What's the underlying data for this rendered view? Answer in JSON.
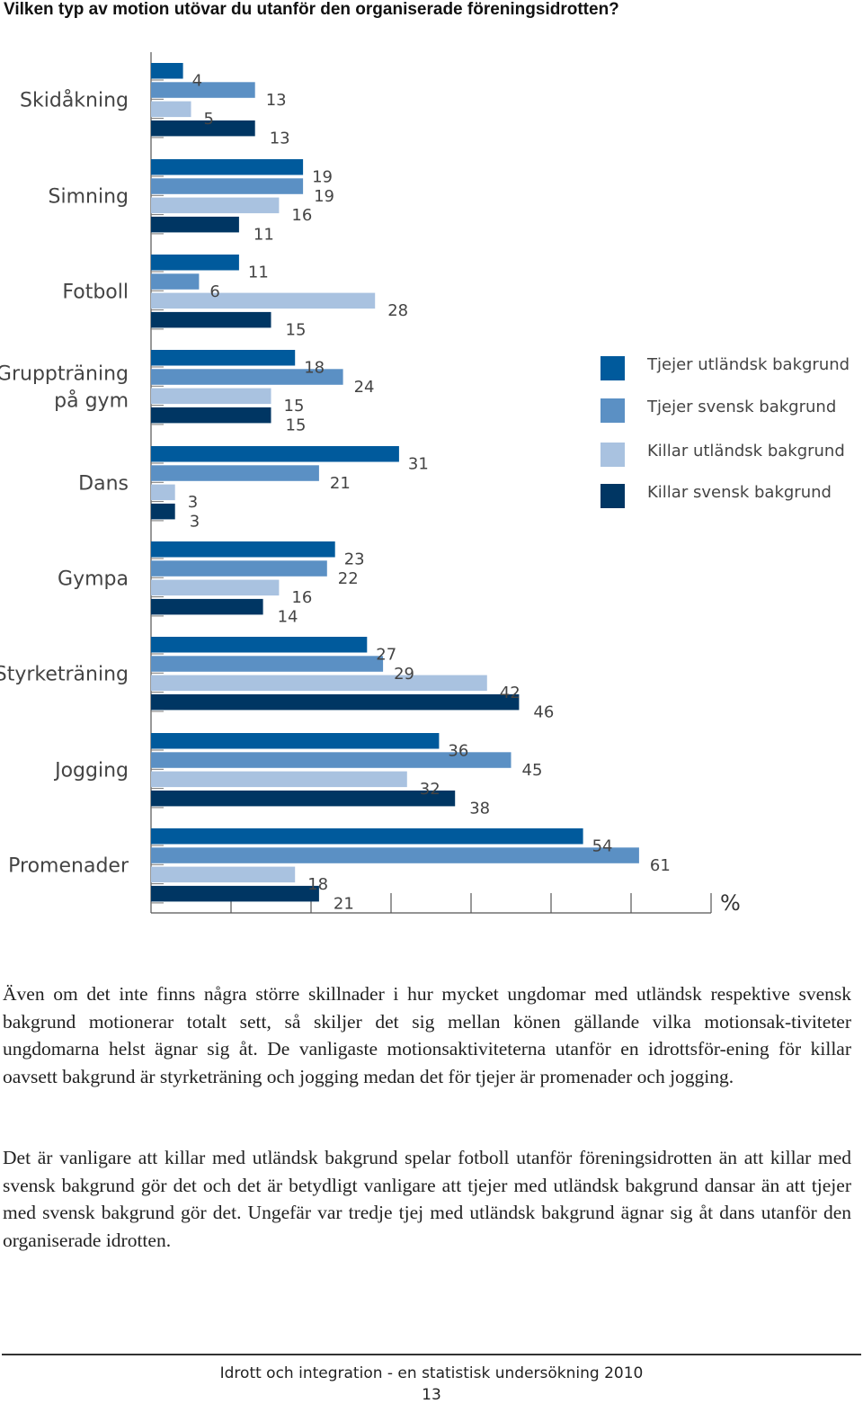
{
  "title": "Vilken typ av motion utövar du utanför den organiserade föreningsidrotten?",
  "chart_data": {
    "type": "bar",
    "orientation": "horizontal",
    "categories": [
      "Skidåkning",
      "Simning",
      "Fotboll",
      "Gruppträning på gym",
      "Dans",
      "Gympa",
      "Styrketräning",
      "Jogging",
      "Promenader"
    ],
    "category_labels": [
      [
        "Skidåkning"
      ],
      [
        "Simning"
      ],
      [
        "Fotboll"
      ],
      [
        "Gruppträning",
        "på gym"
      ],
      [
        "Dans"
      ],
      [
        "Gympa"
      ],
      [
        "Styrketräning"
      ],
      [
        "Jogging"
      ],
      [
        "Promenader"
      ]
    ],
    "series": [
      {
        "name": "Tjejer utländsk bakgrund",
        "color": "#005a9c",
        "values": [
          4,
          19,
          11,
          18,
          31,
          23,
          27,
          36,
          54
        ]
      },
      {
        "name": "Tjejer svensk bakgrund",
        "color": "#5b90c4",
        "values": [
          13,
          19,
          6,
          24,
          21,
          22,
          29,
          45,
          61
        ]
      },
      {
        "name": "Killar utländsk bakgrund",
        "color": "#a9c2e0",
        "values": [
          5,
          16,
          28,
          15,
          3,
          16,
          42,
          32,
          18
        ]
      },
      {
        "name": "Killar svensk bakgrund",
        "color": "#003663",
        "values": [
          13,
          11,
          15,
          15,
          3,
          14,
          46,
          38,
          21
        ]
      }
    ],
    "unit": "%",
    "xlim": [
      0,
      70
    ],
    "xticks": [
      0,
      10,
      20,
      30,
      40,
      50,
      60,
      70
    ],
    "grid": false,
    "legend_position": "right"
  },
  "paragraphs": [
    "Även om det inte finns några större skillnader i hur mycket ungdomar med utländsk respektive svensk bakgrund motionerar totalt sett, så skiljer det sig mellan könen gällande vilka motionsak-tiviteter ungdomarna helst ägnar sig åt. De vanligaste motionsaktiviteterna utanför en idrottsför-ening för killar oavsett bakgrund är styrketräning och jogging medan det för tjejer är promenader och jogging.",
    "Det är vanligare att killar med utländsk bakgrund spelar fotboll utanför föreningsidrotten än att killar med svensk bakgrund gör det och det är betydligt vanligare att tjejer med utländsk bakgrund dansar än att tjejer med svensk bakgrund gör det. Ungefär var tredje tjej med utländsk bakgrund ägnar sig åt dans utanför den organiserade idrotten."
  ],
  "footer": {
    "title": "Idrott och integration - en statistisk undersökning 2010",
    "page_number": "13"
  }
}
